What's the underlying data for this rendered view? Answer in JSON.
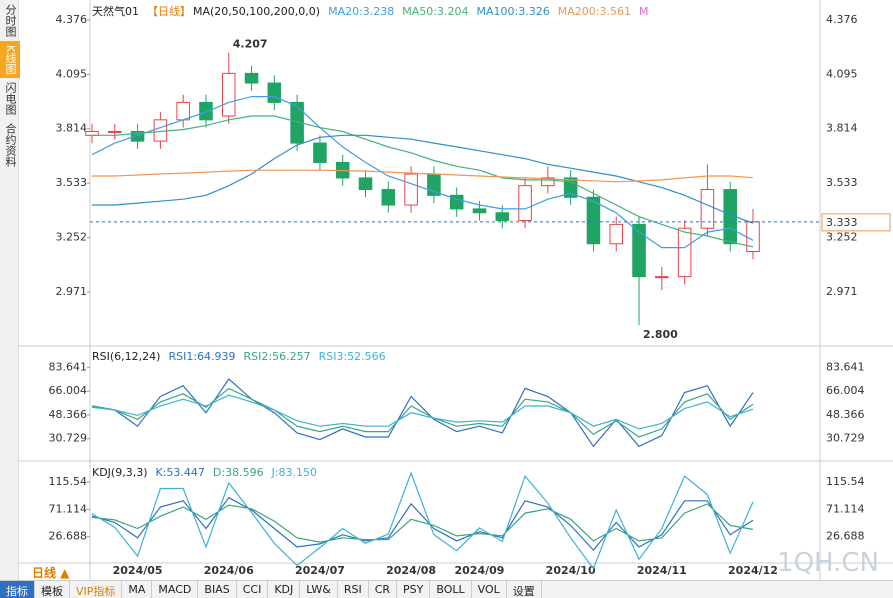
{
  "sidebar": [
    "分时图",
    "K线图",
    "闪电图",
    "合约资料"
  ],
  "toolbar": {
    "period": "日线 ▲",
    "tabs": [
      "指标",
      "模板",
      "VIP指标",
      "MA",
      "MACD",
      "BIAS",
      "CCI",
      "KDJ",
      "LW&",
      "RSI",
      "CR",
      "PSY",
      "BOLL",
      "VOL",
      "设置"
    ]
  },
  "watermark": "1QH.CN",
  "chart_data": [
    {
      "type": "candlestick",
      "title": "天然气01",
      "period": "【日线】",
      "ma_legend": "MA(20,50,100,200,0,0)",
      "extra_legend": "M",
      "annotations": [
        "4.207",
        "2.800"
      ],
      "up_color": "#e8424a",
      "down_color": "#1fa463",
      "categories": [
        null,
        null,
        "2024/05",
        null,
        null,
        null,
        "2024/06",
        null,
        null,
        null,
        "2024/07",
        null,
        null,
        null,
        "2024/08",
        null,
        null,
        "2024/09",
        null,
        null,
        null,
        "2024/10",
        null,
        null,
        null,
        "2024/11",
        null,
        null,
        null,
        "2024/12"
      ],
      "open": [
        3.78,
        3.8,
        3.8,
        3.75,
        3.86,
        3.95,
        3.88,
        4.1,
        4.05,
        3.95,
        3.74,
        3.64,
        3.56,
        3.5,
        3.42,
        3.58,
        3.47,
        3.4,
        3.38,
        3.34,
        3.52,
        3.56,
        3.46,
        3.22,
        3.32,
        3.05,
        3.05,
        3.3,
        3.5,
        3.18
      ],
      "high": [
        3.84,
        3.84,
        3.84,
        3.9,
        3.99,
        3.99,
        4.207,
        4.14,
        4.09,
        3.99,
        3.78,
        3.68,
        3.6,
        3.54,
        3.62,
        3.62,
        3.51,
        3.44,
        3.42,
        3.56,
        3.62,
        3.6,
        3.5,
        3.36,
        3.36,
        3.1,
        3.34,
        3.63,
        3.54,
        3.4
      ],
      "low": [
        3.74,
        3.76,
        3.71,
        3.71,
        3.82,
        3.82,
        3.84,
        4.01,
        3.91,
        3.7,
        3.6,
        3.52,
        3.46,
        3.38,
        3.38,
        3.43,
        3.36,
        3.34,
        3.3,
        3.3,
        3.48,
        3.42,
        3.18,
        3.18,
        2.8,
        2.98,
        3.01,
        3.26,
        3.18,
        3.14
      ],
      "close": [
        3.8,
        3.8,
        3.75,
        3.86,
        3.95,
        3.86,
        4.1,
        4.05,
        3.95,
        3.74,
        3.64,
        3.56,
        3.5,
        3.42,
        3.58,
        3.47,
        3.4,
        3.38,
        3.34,
        3.52,
        3.56,
        3.46,
        3.22,
        3.32,
        3.05,
        3.05,
        3.3,
        3.5,
        3.22,
        3.333
      ],
      "series": [
        {
          "name": "MA20:3.238",
          "color": "#3f9ee6",
          "values": [
            3.68,
            3.74,
            3.78,
            3.82,
            3.86,
            3.9,
            3.95,
            3.98,
            3.98,
            3.93,
            3.82,
            3.72,
            3.64,
            3.57,
            3.53,
            3.49,
            3.45,
            3.42,
            3.4,
            3.4,
            3.45,
            3.48,
            3.44,
            3.38,
            3.28,
            3.2,
            3.2,
            3.28,
            3.3,
            3.238
          ]
        },
        {
          "name": "MA50:3.204",
          "color": "#44b27a",
          "values": [
            3.78,
            3.78,
            3.79,
            3.8,
            3.81,
            3.83,
            3.86,
            3.88,
            3.88,
            3.85,
            3.82,
            3.8,
            3.76,
            3.72,
            3.69,
            3.65,
            3.62,
            3.6,
            3.56,
            3.55,
            3.55,
            3.54,
            3.48,
            3.42,
            3.36,
            3.32,
            3.28,
            3.26,
            3.23,
            3.204
          ]
        },
        {
          "name": "MA100:3.326",
          "color": "#2f8fc8",
          "values": [
            3.42,
            3.42,
            3.43,
            3.44,
            3.45,
            3.47,
            3.52,
            3.58,
            3.66,
            3.73,
            3.77,
            3.78,
            3.78,
            3.77,
            3.76,
            3.74,
            3.72,
            3.7,
            3.68,
            3.66,
            3.63,
            3.61,
            3.59,
            3.57,
            3.54,
            3.51,
            3.47,
            3.42,
            3.37,
            3.326
          ]
        },
        {
          "name": "MA200:3.561",
          "color": "#f0964e",
          "values": [
            3.57,
            3.57,
            3.575,
            3.58,
            3.585,
            3.59,
            3.595,
            3.6,
            3.6,
            3.6,
            3.6,
            3.598,
            3.595,
            3.59,
            3.585,
            3.58,
            3.575,
            3.57,
            3.565,
            3.56,
            3.555,
            3.55,
            3.545,
            3.54,
            3.545,
            3.55,
            3.56,
            3.57,
            3.57,
            3.561
          ]
        }
      ],
      "ylim": [
        2.697,
        4.479
      ],
      "yticks": [
        2.971,
        3.252,
        3.533,
        3.814,
        4.095,
        4.376
      ],
      "grid": false
    },
    {
      "type": "line",
      "title": "RSI(6,12,24)",
      "series": [
        {
          "name": "RSI1:64.939",
          "color": "#2e6fc4",
          "values": [
            55,
            52,
            40,
            62,
            70,
            50,
            75,
            60,
            50,
            35,
            30,
            38,
            32,
            32,
            62,
            45,
            36,
            40,
            35,
            68,
            62,
            50,
            25,
            45,
            25,
            33,
            65,
            70,
            40,
            64.939
          ]
        },
        {
          "name": "RSI2:56.257",
          "color": "#3aa776",
          "values": [
            55,
            52,
            45,
            58,
            64,
            54,
            68,
            60,
            52,
            40,
            36,
            40,
            36,
            36,
            55,
            46,
            40,
            42,
            40,
            60,
            58,
            50,
            34,
            44,
            32,
            38,
            58,
            64,
            45,
            56.257
          ]
        },
        {
          "name": "RSI3:52.566",
          "color": "#3fb0d8",
          "values": [
            54,
            52,
            48,
            55,
            60,
            55,
            63,
            58,
            52,
            44,
            40,
            42,
            40,
            40,
            50,
            46,
            43,
            44,
            43,
            55,
            55,
            50,
            40,
            45,
            38,
            42,
            53,
            58,
            47,
            52.566
          ]
        }
      ],
      "ylim": [
        14.9,
        98
      ],
      "yticks": [
        30.729,
        48.366,
        66.004,
        83.641
      ]
    },
    {
      "type": "line",
      "title": "KDJ(9,3,3)",
      "series": [
        {
          "name": "K:53.447",
          "color": "#2e6fc4",
          "values": [
            60,
            50,
            25,
            75,
            85,
            40,
            90,
            70,
            40,
            10,
            15,
            30,
            20,
            25,
            80,
            40,
            20,
            35,
            25,
            85,
            75,
            45,
            5,
            50,
            10,
            30,
            85,
            85,
            30,
            53.447
          ]
        },
        {
          "name": "D:38.596",
          "color": "#3aa776",
          "values": [
            58,
            54,
            40,
            60,
            75,
            55,
            78,
            72,
            52,
            25,
            18,
            25,
            22,
            22,
            55,
            45,
            28,
            32,
            28,
            65,
            72,
            55,
            20,
            40,
            20,
            25,
            65,
            80,
            45,
            38.596
          ]
        },
        {
          "name": "J:83.150",
          "color": "#3fb0d8",
          "values": [
            64,
            42,
            -5,
            105,
            105,
            10,
            114,
            66,
            16,
            -20,
            9,
            40,
            16,
            31,
            130,
            30,
            4,
            41,
            19,
            125,
            81,
            25,
            -25,
            70,
            -10,
            40,
            125,
            95,
            0,
            83.15
          ]
        }
      ],
      "ylim": [
        -14.3,
        146.3
      ],
      "yticks": [
        26.688,
        71.114,
        115.54
      ]
    }
  ]
}
